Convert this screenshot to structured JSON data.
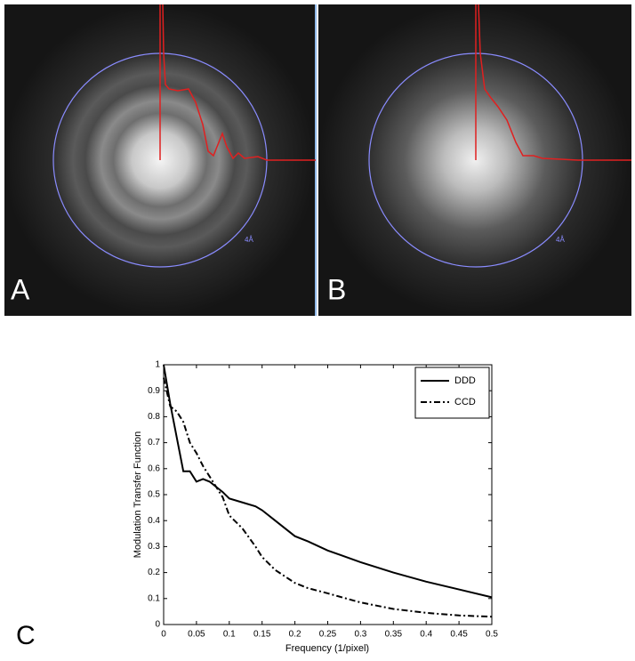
{
  "panels": [
    {
      "label": "A",
      "ring_label": "4Å"
    },
    {
      "label": "B",
      "ring_label": "4Å"
    }
  ],
  "figure_label": "C",
  "chart_data": {
    "type": "line",
    "x_label": "Frequency (1/pixel)",
    "y_label": "Modulation Transfer Function",
    "x": [
      0,
      0.01,
      0.02,
      0.03,
      0.04,
      0.05,
      0.06,
      0.07,
      0.08,
      0.09,
      0.1,
      0.12,
      0.14,
      0.15,
      0.17,
      0.2,
      0.22,
      0.25,
      0.3,
      0.35,
      0.4,
      0.45,
      0.5
    ],
    "series": [
      {
        "name": "DDD",
        "color": "#000000",
        "linestyle": "solid",
        "values": [
          1.0,
          0.85,
          0.72,
          0.59,
          0.59,
          0.55,
          0.56,
          0.55,
          0.53,
          0.51,
          0.485,
          0.47,
          0.455,
          0.44,
          0.4,
          0.34,
          0.32,
          0.285,
          0.24,
          0.2,
          0.165,
          0.135,
          0.105
        ]
      },
      {
        "name": "CCD",
        "color": "#000000",
        "linestyle": "dashdot",
        "values": [
          0.95,
          0.84,
          0.82,
          0.78,
          0.7,
          0.66,
          0.61,
          0.57,
          0.53,
          0.49,
          0.42,
          0.37,
          0.3,
          0.26,
          0.21,
          0.16,
          0.14,
          0.12,
          0.085,
          0.06,
          0.045,
          0.035,
          0.03
        ]
      }
    ],
    "xlim": [
      0,
      0.5
    ],
    "xticks": [
      0,
      0.05,
      0.1,
      0.15,
      0.2,
      0.25,
      0.3,
      0.35,
      0.4,
      0.45,
      0.5
    ],
    "ylim": [
      0,
      1
    ],
    "yticks": [
      0,
      0.1,
      0.2,
      0.3,
      0.4,
      0.5,
      0.6,
      0.7,
      0.8,
      0.9,
      1
    ],
    "legend": "upper right"
  }
}
